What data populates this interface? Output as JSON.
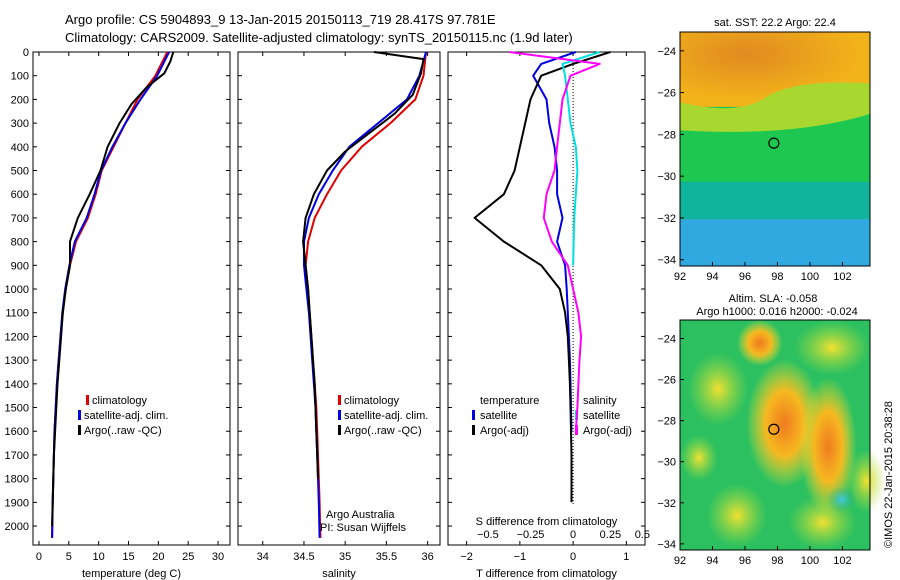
{
  "header": {
    "line1": "Argo profile: CS 5904893_9 13-Jan-2015 20150113_719 28.417S 97.781E",
    "line2": "Climatology: CARS2009. Satellite-adjusted climatology: synTS_20150115.nc (1.9d later)"
  },
  "colors": {
    "climatology": "#e00000",
    "satellite": "#0000e0",
    "argo": "#000000",
    "salinity_satellite": "#00e0e0",
    "salinity_argo": "#ff00ff"
  },
  "depth_ticks": [
    "0",
    "100",
    "200",
    "300",
    "400",
    "500",
    "600",
    "700",
    "800",
    "900",
    "1000",
    "1100",
    "1200",
    "1300",
    "1400",
    "1500",
    "1600",
    "1700",
    "1800",
    "1900",
    "2000"
  ],
  "legend_labels": {
    "climatology": "climatology",
    "satellite": "satellite-adj. clim.",
    "argo": "Argo(..raw -QC)"
  },
  "annotations": {
    "institution": "Argo Australia",
    "pi": "PI: Susan Wijffels",
    "credit": "©IMOS 22-Jan-2015 20:38:28"
  },
  "chart_data": [
    {
      "type": "line",
      "xlabel": "temperature (deg C)",
      "ylabel": "",
      "xlim": [
        -1,
        32
      ],
      "ylim": [
        2080,
        0
      ],
      "xticks": [
        "0",
        "5",
        "10",
        "15",
        "20",
        "25",
        "30"
      ],
      "series": [
        {
          "name": "climatology",
          "color": "#e00000",
          "x": [
            21.5,
            19.5,
            16.5,
            14.5,
            12.5,
            10.5,
            9.5,
            8.2,
            6.2,
            5.2,
            4.5,
            4.0,
            3.6,
            3.3,
            3.0,
            2.8,
            2.6,
            2.5,
            2.4,
            2.3,
            2.2
          ],
          "y": [
            0,
            100,
            200,
            300,
            400,
            500,
            600,
            700,
            800,
            900,
            1000,
            1100,
            1200,
            1300,
            1400,
            1500,
            1600,
            1700,
            1800,
            1900,
            2050
          ]
        },
        {
          "name": "satellite-adj. clim.",
          "color": "#0000e0",
          "x": [
            21.8,
            19.8,
            17.0,
            14.5,
            12.3,
            10.4,
            9.3,
            8.0,
            6.0,
            5.1,
            4.4,
            3.9,
            3.6,
            3.3,
            3.0,
            2.8,
            2.6,
            2.5,
            2.4,
            2.3,
            2.2
          ],
          "y": [
            0,
            100,
            200,
            300,
            400,
            500,
            600,
            700,
            800,
            900,
            1000,
            1100,
            1200,
            1300,
            1400,
            1500,
            1600,
            1700,
            1800,
            1900,
            2050
          ]
        },
        {
          "name": "Argo(..raw -QC)",
          "color": "#000000",
          "x": [
            22.5,
            22.0,
            21.0,
            18.0,
            15.5,
            13.5,
            11.5,
            10.3,
            8.5,
            6.5,
            5.2,
            5.2,
            4.5,
            4.0,
            3.7,
            3.4,
            3.1,
            2.9,
            2.7,
            2.5,
            2.4,
            2.3,
            2.2
          ],
          "y": [
            0,
            40,
            90,
            150,
            220,
            300,
            400,
            500,
            600,
            700,
            800,
            900,
            1000,
            1100,
            1200,
            1300,
            1400,
            1500,
            1600,
            1700,
            1800,
            1900,
            2000
          ]
        }
      ]
    },
    {
      "type": "line",
      "xlabel": "salinity",
      "ylabel": "",
      "xlim": [
        33.7,
        36.15
      ],
      "ylim": [
        2080,
        0
      ],
      "xticks": [
        "34",
        "34.5",
        "35",
        "35.5",
        "36"
      ],
      "series": [
        {
          "name": "climatology",
          "color": "#e00000",
          "x": [
            35.98,
            35.95,
            35.85,
            35.55,
            35.2,
            34.95,
            34.78,
            34.63,
            34.55,
            34.52,
            34.55,
            34.57,
            34.59,
            34.61,
            34.63,
            34.65,
            34.66,
            34.67,
            34.68,
            34.69,
            34.7
          ],
          "y": [
            0,
            100,
            200,
            300,
            400,
            500,
            600,
            700,
            800,
            900,
            1000,
            1100,
            1200,
            1300,
            1400,
            1500,
            1600,
            1700,
            1800,
            1900,
            2050
          ]
        },
        {
          "name": "satellite-adj. clim.",
          "color": "#0000e0",
          "x": [
            35.98,
            35.9,
            35.75,
            35.4,
            35.05,
            34.85,
            34.68,
            34.56,
            34.5,
            34.5,
            34.53,
            34.56,
            34.58,
            34.6,
            34.62,
            34.64,
            34.65,
            34.66,
            34.67,
            34.68,
            34.69
          ],
          "y": [
            0,
            100,
            200,
            300,
            400,
            500,
            600,
            700,
            800,
            900,
            1000,
            1100,
            1200,
            1300,
            1400,
            1500,
            1600,
            1700,
            1800,
            1900,
            2050
          ]
        },
        {
          "name": "Argo(..raw -QC)",
          "color": "#000000",
          "x": [
            35.35,
            35.95,
            35.92,
            35.82,
            35.6,
            35.3,
            35.0,
            34.78,
            34.62,
            34.52,
            34.49,
            34.52,
            34.55,
            34.57,
            34.59,
            34.61,
            34.63,
            34.64,
            34.65,
            34.66,
            34.67
          ],
          "y": [
            0,
            30,
            90,
            180,
            260,
            340,
            420,
            500,
            600,
            700,
            800,
            900,
            1000,
            1100,
            1200,
            1300,
            1400,
            1500,
            1600,
            1700,
            1800
          ]
        }
      ]
    },
    {
      "type": "line",
      "xlabel": "T difference from climatology",
      "title": "S difference from climatology",
      "xlim": [
        -2.35,
        1.35
      ],
      "ylim": [
        2080,
        0
      ],
      "xticks": [
        "-2",
        "-1",
        "0",
        "1"
      ],
      "top_xticks": [
        "-0.5",
        "-0.25",
        "0",
        "0.25",
        "0.5"
      ],
      "legend_groups": [
        "temperature",
        "salinity"
      ],
      "series": [
        {
          "name": "satellite",
          "group": "temperature",
          "color": "#0000e0",
          "x": [
            0.05,
            -0.6,
            -0.75,
            -0.5,
            -0.45,
            -0.35,
            -0.3,
            -0.3,
            -0.2,
            -0.3,
            -0.15,
            -0.12,
            -0.1,
            -0.08,
            -0.06,
            -0.05,
            -0.04,
            -0.03
          ],
          "y": [
            0,
            50,
            100,
            200,
            300,
            400,
            500,
            600,
            700,
            800,
            900,
            1000,
            1100,
            1200,
            1300,
            1400,
            1500,
            1600
          ]
        },
        {
          "name": "Argo(-adj)",
          "group": "temperature",
          "color": "#000000",
          "x": [
            0.7,
            0.0,
            -0.6,
            -0.8,
            -0.9,
            -1.0,
            -1.1,
            -1.3,
            -1.85,
            -1.3,
            -0.6,
            -0.25,
            -0.15,
            -0.1,
            -0.08,
            -0.06,
            -0.05,
            -0.04,
            -0.03,
            -0.03,
            -0.03
          ],
          "y": [
            0,
            50,
            100,
            200,
            300,
            400,
            500,
            600,
            700,
            800,
            900,
            1000,
            1100,
            1200,
            1300,
            1400,
            1500,
            1600,
            1700,
            1800,
            1900
          ]
        },
        {
          "name": "satellite",
          "group": "salinity",
          "color": "#00e0e0",
          "x": [
            0.5,
            -0.2,
            -0.15,
            -0.1,
            -0.05,
            0.05,
            0.08,
            0.05,
            0.02,
            0.01,
            0.0
          ],
          "y": [
            0,
            50,
            100,
            200,
            300,
            400,
            500,
            600,
            700,
            800,
            900
          ]
        },
        {
          "name": "Argo(-adj)",
          "group": "salinity",
          "color": "#ff00ff",
          "x": [
            -1.2,
            0.5,
            -0.05,
            -0.2,
            -0.25,
            -0.3,
            -0.35,
            -0.5,
            -0.55,
            -0.4,
            -0.1,
            0.0,
            0.1,
            0.15,
            0.12,
            0.1,
            0.08,
            0.05
          ],
          "y": [
            0,
            50,
            100,
            200,
            300,
            400,
            500,
            600,
            700,
            800,
            900,
            1000,
            1100,
            1200,
            1300,
            1400,
            1500,
            1600
          ]
        }
      ]
    },
    {
      "type": "heatmap",
      "title": "sat. SST: 22.2 Argo: 22.4",
      "xlim": [
        92,
        103.7
      ],
      "ylim": [
        -34.3,
        -23.1
      ],
      "xticks": [
        "92",
        "94",
        "96",
        "98",
        "100",
        "102"
      ],
      "yticks": [
        "-24",
        "-26",
        "-28",
        "-30",
        "-32",
        "-34"
      ],
      "marker": {
        "lon": 97.78,
        "lat": -28.42
      }
    },
    {
      "type": "heatmap",
      "title": "Altim. SLA: -0.058",
      "subtitle": "Argo h1000: 0.016 h2000: -0.024",
      "xlim": [
        92,
        103.7
      ],
      "ylim": [
        -34.3,
        -23.1
      ],
      "xticks": [
        "92",
        "94",
        "96",
        "98",
        "100",
        "102"
      ],
      "yticks": [
        "-24",
        "-26",
        "-28",
        "-30",
        "-32",
        "-34"
      ],
      "marker": {
        "lon": 97.78,
        "lat": -28.42
      }
    }
  ]
}
